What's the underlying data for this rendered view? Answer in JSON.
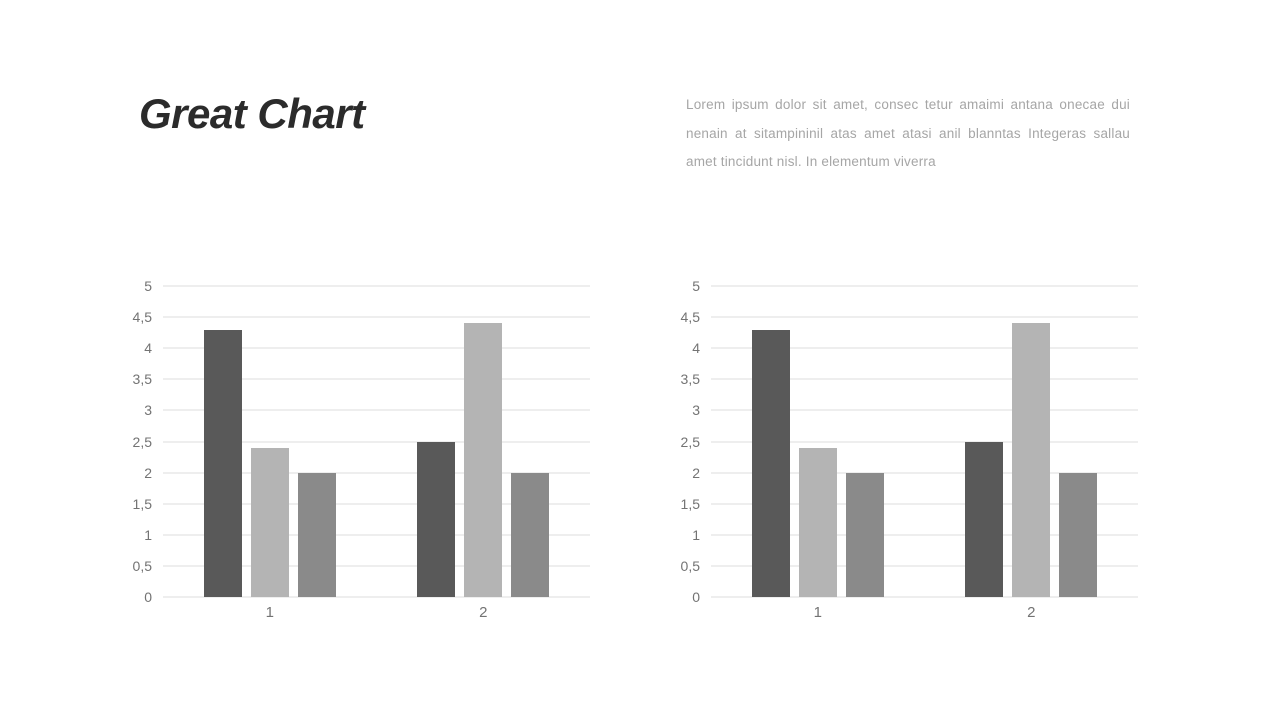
{
  "slide": {
    "title": "Great Chart",
    "body_lines": [
      "Lorem ipsum dolor sit amet, consec tetur amaimi antana onecae dui",
      "nenain at sitampininil atas amet atasi anil blanntas Integeras sallau",
      "amet tincidunt nisl. In elementum viverra"
    ]
  },
  "colors": {
    "title_text": "#2b2b2b",
    "body_text": "#a6a6a6",
    "axis_label": "#737373",
    "gridline": "#dcdcdc",
    "series": [
      "#595959",
      "#b4b4b4",
      "#8a8a8a"
    ]
  },
  "chart_data": [
    {
      "type": "bar",
      "title": "",
      "xlabel": "",
      "ylabel": "",
      "categories": [
        "1",
        "2"
      ],
      "series": [
        {
          "color": "#595959",
          "values": [
            4.3,
            2.5
          ]
        },
        {
          "color": "#b4b4b4",
          "values": [
            2.4,
            4.4
          ]
        },
        {
          "color": "#8a8a8a",
          "values": [
            2.0,
            2.0
          ]
        }
      ],
      "ylim": [
        0,
        5
      ],
      "ytick_step": 0.5,
      "ytick_labels": [
        "0",
        "0,5",
        "1",
        "1,5",
        "2",
        "2,5",
        "3",
        "3,5",
        "4",
        "4,5",
        "5"
      ],
      "grid": true,
      "legend": "none"
    },
    {
      "type": "bar",
      "title": "",
      "xlabel": "",
      "ylabel": "",
      "categories": [
        "1",
        "2"
      ],
      "series": [
        {
          "color": "#595959",
          "values": [
            4.3,
            2.5
          ]
        },
        {
          "color": "#b4b4b4",
          "values": [
            2.4,
            4.4
          ]
        },
        {
          "color": "#8a8a8a",
          "values": [
            2.0,
            2.0
          ]
        }
      ],
      "ylim": [
        0,
        5
      ],
      "ytick_step": 0.5,
      "ytick_labels": [
        "0",
        "0,5",
        "1",
        "1,5",
        "2",
        "2,5",
        "3",
        "3,5",
        "4",
        "4,5",
        "5"
      ],
      "grid": true,
      "legend": "none"
    }
  ]
}
